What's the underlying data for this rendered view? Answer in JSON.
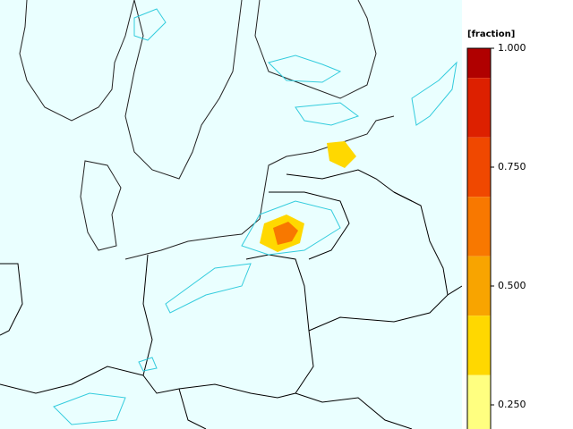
{
  "colorbar": {
    "label": "[fraction]",
    "lim": [
      0.1875,
      1.0
    ],
    "ticks": [
      {
        "value": 1.0,
        "label": "1.000"
      },
      {
        "value": 0.75,
        "label": "0.750"
      },
      {
        "value": 0.5,
        "label": "0.500"
      },
      {
        "value": 0.25,
        "label": "0.250"
      }
    ],
    "bands": [
      {
        "from": 0.9375,
        "to": 1.0,
        "color": "#b00000"
      },
      {
        "from": 0.8125,
        "to": 0.9375,
        "color": "#dd2000"
      },
      {
        "from": 0.6875,
        "to": 0.8125,
        "color": "#f04800"
      },
      {
        "from": 0.5625,
        "to": 0.6875,
        "color": "#f87800"
      },
      {
        "from": 0.4375,
        "to": 0.5625,
        "color": "#f8a400"
      },
      {
        "from": 0.3125,
        "to": 0.4375,
        "color": "#ffd800"
      },
      {
        "from": 0.1875,
        "to": 0.3125,
        "color": "#ffff80"
      }
    ]
  }
}
